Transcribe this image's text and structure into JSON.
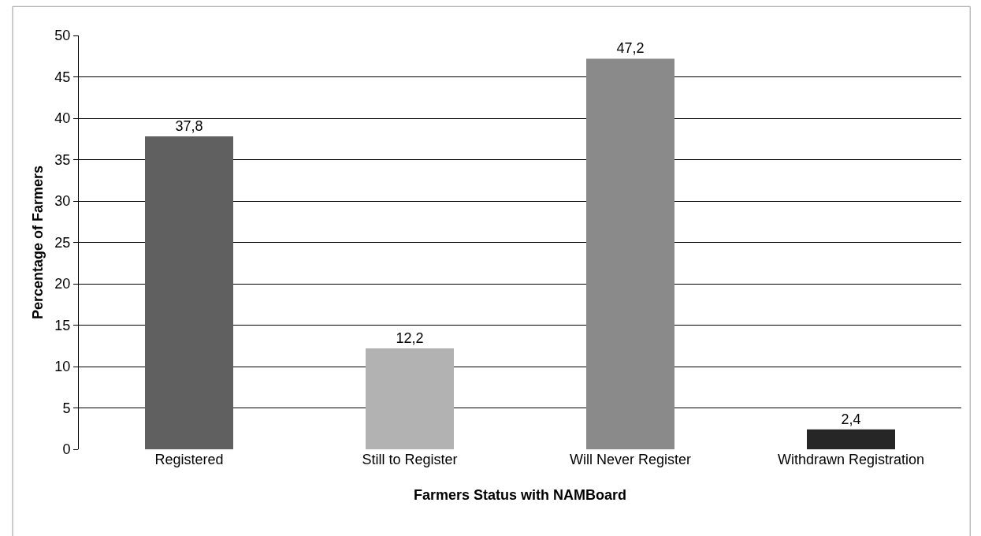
{
  "chart_data": {
    "type": "bar",
    "xlabel": "Farmers Status with NAMBoard",
    "ylabel": "Percentage of Farmers",
    "categories": [
      "Registered",
      "Still to Register",
      "Will Never Register",
      "Withdrawn Registration"
    ],
    "values": [
      37.8,
      12.2,
      47.2,
      2.4
    ],
    "colors": [
      "#606060",
      "#b2b2b2",
      "#8a8a8a",
      "#262626"
    ],
    "value_labels": [
      "37,8",
      "12,2",
      "47,2",
      "2,4"
    ],
    "ylim": [
      0,
      50
    ],
    "yticks": [
      0,
      5,
      10,
      15,
      20,
      25,
      30,
      35,
      40,
      45,
      50
    ],
    "grid": "y"
  }
}
